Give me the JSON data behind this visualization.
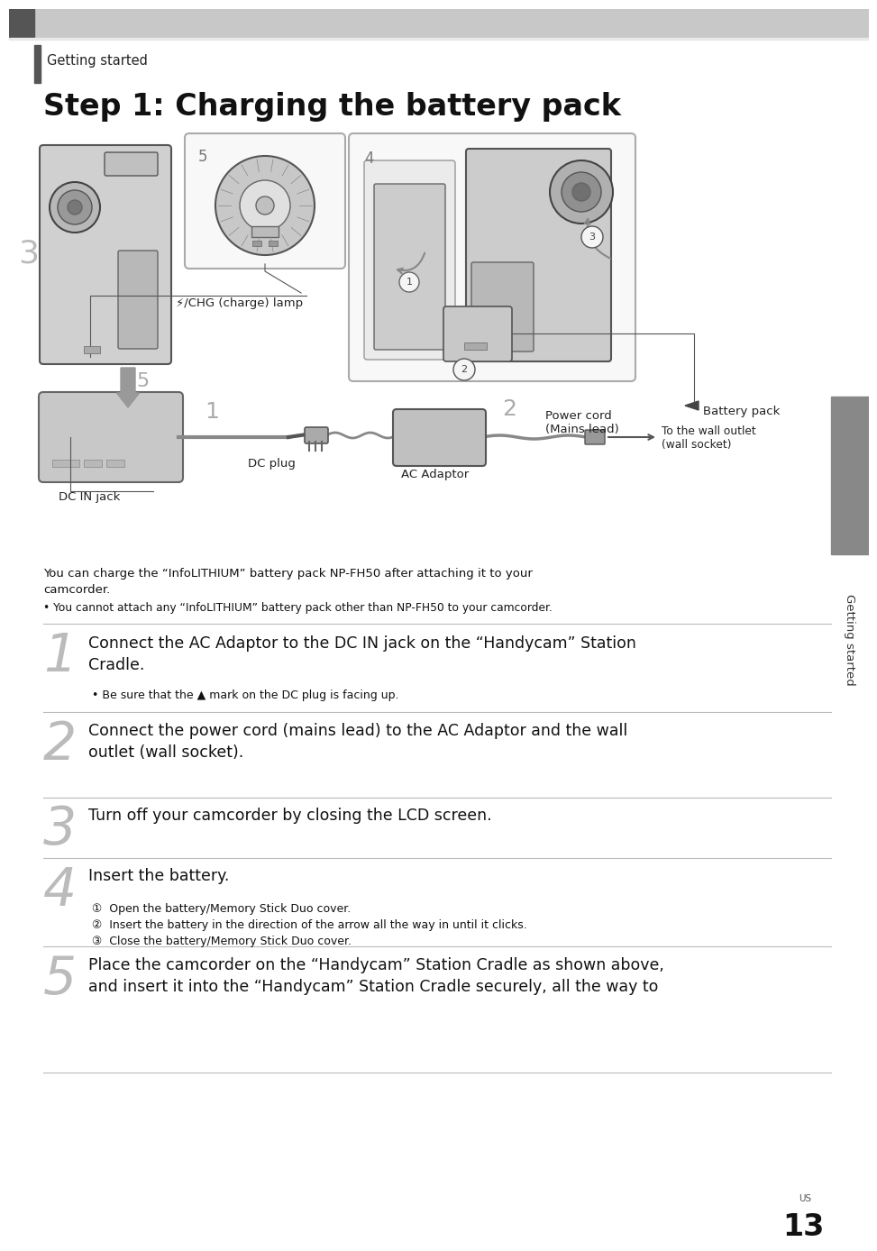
{
  "bg_color": "#ffffff",
  "title_small": "Getting started",
  "title_large": "Step 1: Charging the battery pack",
  "body_text_1": "You can charge the “InfoLITHIUM” battery pack NP-FH50 after attaching it to your\ncamcorder.",
  "body_bullet": "• You cannot attach any “InfoLITHIUM” battery pack other than NP-FH50 to your camcorder.",
  "step1_num": "1",
  "step1_text": "Connect the AC Adaptor to the DC IN jack on the “Handycam” Station\nCradle.",
  "step1_bullet": "• Be sure that the ▲ mark on the DC plug is facing up.",
  "step2_num": "2",
  "step2_text": "Connect the power cord (mains lead) to the AC Adaptor and the wall\noutlet (wall socket).",
  "step3_num": "3",
  "step3_text": "Turn off your camcorder by closing the LCD screen.",
  "step4_num": "4",
  "step4_text": "Insert the battery.",
  "step4_sub1": "①  Open the battery/Memory Stick Duo cover.",
  "step4_sub2": "②  Insert the battery in the direction of the arrow all the way in until it clicks.",
  "step4_sub3": "③  Close the battery/Memory Stick Duo cover.",
  "step5_num": "5",
  "step5_text": "Place the camcorder on the “Handycam” Station Cradle as shown above,\nand insert it into the “Handycam” Station Cradle securely, all the way to",
  "page_num": "13",
  "side_label": "Getting started",
  "label_chg": "⚡/CHG (charge) lamp",
  "label_battery": "Battery pack",
  "label_dc_in": "DC IN jack",
  "label_dc_plug": "DC plug",
  "label_ac": "AC Adaptor",
  "label_power": "Power cord\n(Mains lead)",
  "label_wall": "To the wall outlet\n(wall socket)",
  "header_gray": "#c8c8c8",
  "dark_block": "#555555",
  "side_tab_color": "#888888",
  "divider_color": "#bbbbbb",
  "step_num_color": "#bbbbbb",
  "diagram_border": "#aaaaaa",
  "diagram_fill": "#f5f5f5",
  "cam_fill": "#d0d0d0",
  "cam_edge": "#555555"
}
